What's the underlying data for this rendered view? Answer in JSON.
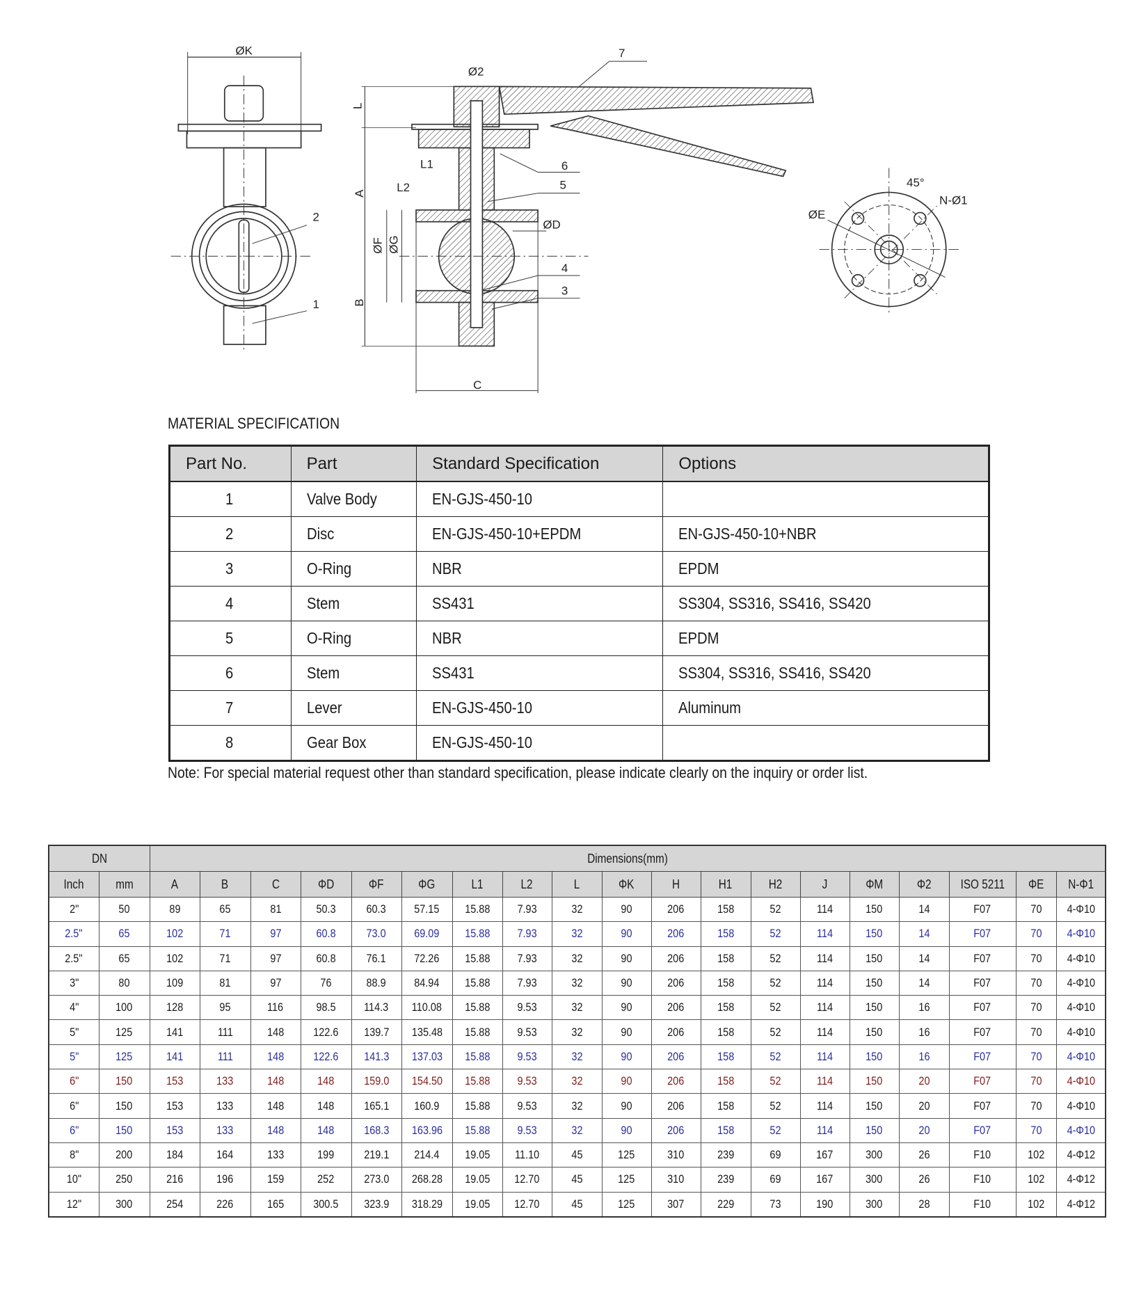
{
  "drawing": {
    "labels": {
      "phiK": "ØK",
      "phi2": "Ø2",
      "L": "L",
      "A": "A",
      "B": "B",
      "C": "C",
      "L1": "L1",
      "L2": "L2",
      "phiF": "ØF",
      "phiG": "ØG",
      "phiD": "ØD",
      "phiE": "ØE",
      "angle": "45°",
      "N_phi1": "N-Ø1"
    },
    "callouts": [
      "1",
      "2",
      "3",
      "4",
      "5",
      "6",
      "7"
    ]
  },
  "material": {
    "title": "MATERIAL SPECIFICATION",
    "headers": [
      "Part No.",
      "Part",
      "Standard Specification",
      "Options"
    ],
    "rows": [
      [
        "1",
        "Valve Body",
        "EN-GJS-450-10",
        ""
      ],
      [
        "2",
        "Disc",
        "EN-GJS-450-10+EPDM",
        "EN-GJS-450-10+NBR"
      ],
      [
        "3",
        "O-Ring",
        "NBR",
        "EPDM"
      ],
      [
        "4",
        "Stem",
        "SS431",
        "SS304, SS316, SS416, SS420"
      ],
      [
        "5",
        "O-Ring",
        "NBR",
        "EPDM"
      ],
      [
        "6",
        "Stem",
        "SS431",
        "SS304, SS316, SS416, SS420"
      ],
      [
        "7",
        "Lever",
        "EN-GJS-450-10",
        "Aluminum"
      ],
      [
        "8",
        "Gear Box",
        "EN-GJS-450-10",
        ""
      ]
    ],
    "note": "Note: For special material request other than standard specification, please indicate clearly on the inquiry or order list."
  },
  "dimensions": {
    "group_headers": {
      "dn": "DN",
      "dims": "Dimensions(mm)"
    },
    "headers": [
      "Inch",
      "mm",
      "A",
      "B",
      "C",
      "ΦD",
      "ΦF",
      "ΦG",
      "L1",
      "L2",
      "L",
      "ΦK",
      "H",
      "H1",
      "H2",
      "J",
      "ΦM",
      "Φ2",
      "ISO 5211",
      "ΦE",
      "N-Φ1"
    ],
    "colors": {
      "blue": "#2a2d9c",
      "red": "#7f1c1c"
    },
    "rows": [
      {
        "color": "black",
        "cells": [
          "2\"",
          "50",
          "89",
          "65",
          "81",
          "50.3",
          "60.3",
          "57.15",
          "15.88",
          "7.93",
          "32",
          "90",
          "206",
          "158",
          "52",
          "114",
          "150",
          "14",
          "F07",
          "70",
          "4-Φ10"
        ]
      },
      {
        "color": "blue",
        "cells": [
          "2.5\"",
          "65",
          "102",
          "71",
          "97",
          "60.8",
          "73.0",
          "69.09",
          "15.88",
          "7.93",
          "32",
          "90",
          "206",
          "158",
          "52",
          "114",
          "150",
          "14",
          "F07",
          "70",
          "4-Φ10"
        ]
      },
      {
        "color": "black",
        "cells": [
          "2.5\"",
          "65",
          "102",
          "71",
          "97",
          "60.8",
          "76.1",
          "72.26",
          "15.88",
          "7.93",
          "32",
          "90",
          "206",
          "158",
          "52",
          "114",
          "150",
          "14",
          "F07",
          "70",
          "4-Φ10"
        ]
      },
      {
        "color": "black",
        "cells": [
          "3\"",
          "80",
          "109",
          "81",
          "97",
          "76",
          "88.9",
          "84.94",
          "15.88",
          "7.93",
          "32",
          "90",
          "206",
          "158",
          "52",
          "114",
          "150",
          "14",
          "F07",
          "70",
          "4-Φ10"
        ]
      },
      {
        "color": "black",
        "cells": [
          "4\"",
          "100",
          "128",
          "95",
          "116",
          "98.5",
          "114.3",
          "110.08",
          "15.88",
          "9.53",
          "32",
          "90",
          "206",
          "158",
          "52",
          "114",
          "150",
          "16",
          "F07",
          "70",
          "4-Φ10"
        ]
      },
      {
        "color": "black",
        "cells": [
          "5\"",
          "125",
          "141",
          "111",
          "148",
          "122.6",
          "139.7",
          "135.48",
          "15.88",
          "9.53",
          "32",
          "90",
          "206",
          "158",
          "52",
          "114",
          "150",
          "16",
          "F07",
          "70",
          "4-Φ10"
        ]
      },
      {
        "color": "blue",
        "cells": [
          "5\"",
          "125",
          "141",
          "111",
          "148",
          "122.6",
          "141.3",
          "137.03",
          "15.88",
          "9.53",
          "32",
          "90",
          "206",
          "158",
          "52",
          "114",
          "150",
          "16",
          "F07",
          "70",
          "4-Φ10"
        ]
      },
      {
        "color": "red",
        "cells": [
          "6\"",
          "150",
          "153",
          "133",
          "148",
          "148",
          "159.0",
          "154.50",
          "15.88",
          "9.53",
          "32",
          "90",
          "206",
          "158",
          "52",
          "114",
          "150",
          "20",
          "F07",
          "70",
          "4-Φ10"
        ]
      },
      {
        "color": "black",
        "cells": [
          "6\"",
          "150",
          "153",
          "133",
          "148",
          "148",
          "165.1",
          "160.9",
          "15.88",
          "9.53",
          "32",
          "90",
          "206",
          "158",
          "52",
          "114",
          "150",
          "20",
          "F07",
          "70",
          "4-Φ10"
        ]
      },
      {
        "color": "blue",
        "cells": [
          "6\"",
          "150",
          "153",
          "133",
          "148",
          "148",
          "168.3",
          "163.96",
          "15.88",
          "9.53",
          "32",
          "90",
          "206",
          "158",
          "52",
          "114",
          "150",
          "20",
          "F07",
          "70",
          "4-Φ10"
        ]
      },
      {
        "color": "black",
        "cells": [
          "8\"",
          "200",
          "184",
          "164",
          "133",
          "199",
          "219.1",
          "214.4",
          "19.05",
          "11.10",
          "45",
          "125",
          "310",
          "239",
          "69",
          "167",
          "300",
          "26",
          "F10",
          "102",
          "4-Φ12"
        ]
      },
      {
        "color": "black",
        "cells": [
          "10\"",
          "250",
          "216",
          "196",
          "159",
          "252",
          "273.0",
          "268.28",
          "19.05",
          "12.70",
          "45",
          "125",
          "310",
          "239",
          "69",
          "167",
          "300",
          "26",
          "F10",
          "102",
          "4-Φ12"
        ]
      },
      {
        "color": "black",
        "cells": [
          "12\"",
          "300",
          "254",
          "226",
          "165",
          "300.5",
          "323.9",
          "318.29",
          "19.05",
          "12.70",
          "45",
          "125",
          "307",
          "229",
          "73",
          "190",
          "300",
          "28",
          "F10",
          "102",
          "4-Φ12"
        ]
      }
    ]
  }
}
